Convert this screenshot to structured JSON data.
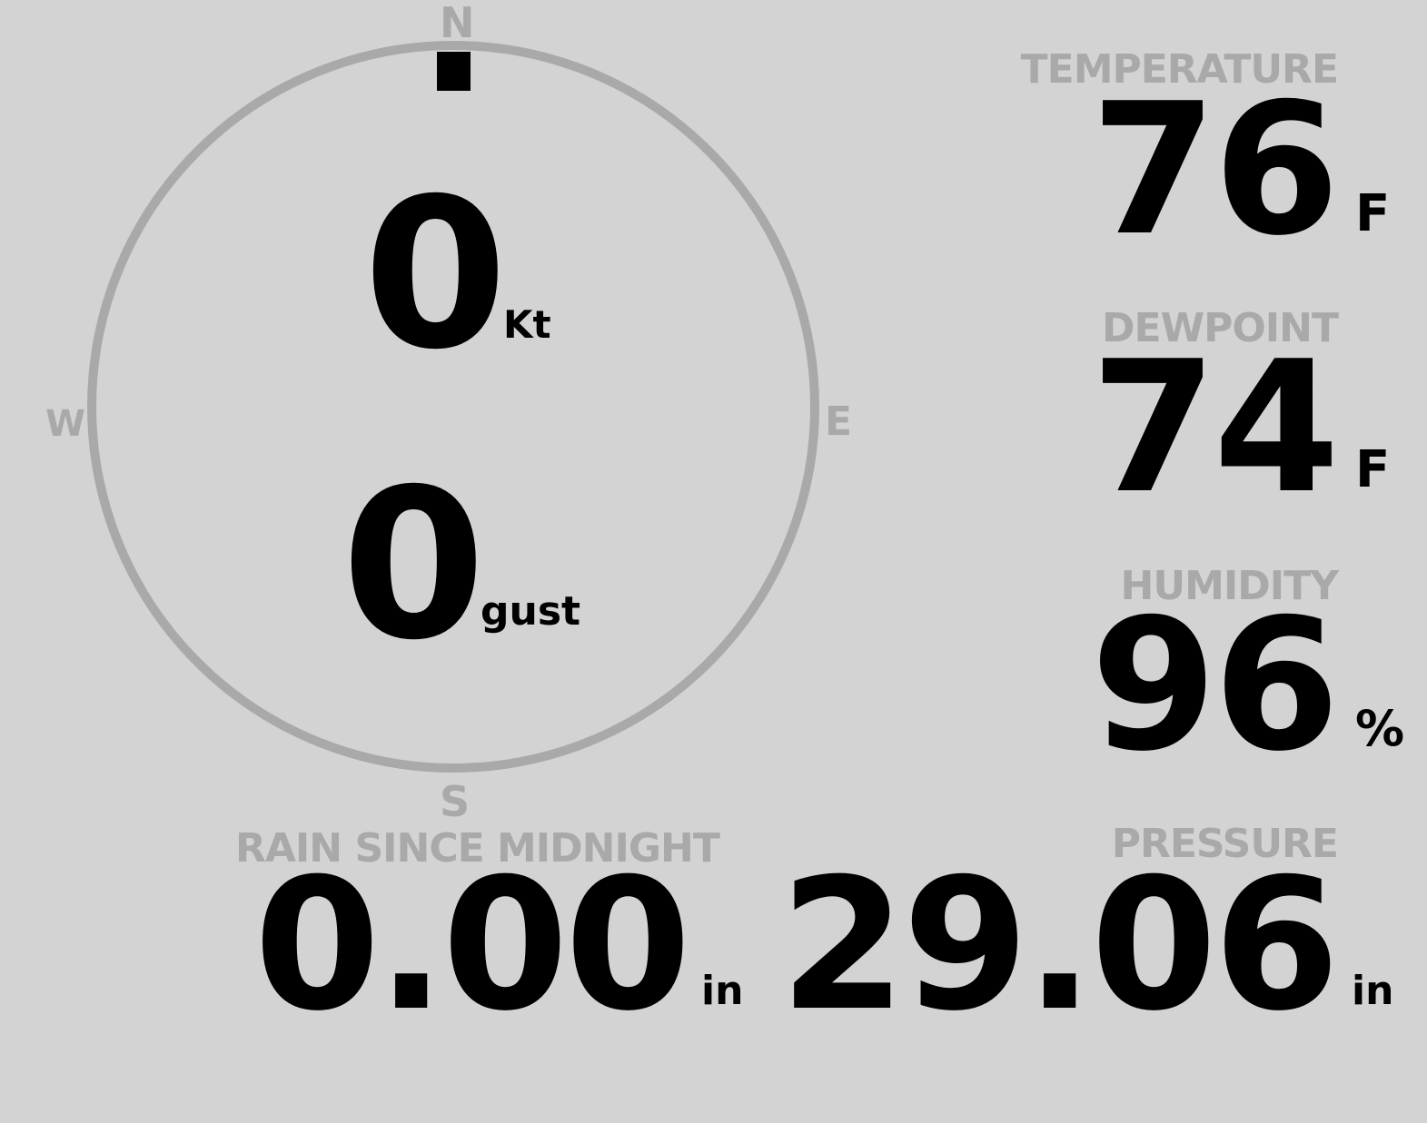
{
  "wind": {
    "compass": {
      "north": "N",
      "south": "S",
      "east": "E",
      "west": "W"
    },
    "direction_deg": 0,
    "speed": "0",
    "speed_unit": "Kt",
    "gust": "0",
    "gust_unit": "gust",
    "colors": {
      "ring": "#a9a9a9",
      "indicator": "#000000"
    }
  },
  "temperature": {
    "label": "TEMPERATURE",
    "value": "76",
    "unit": "F"
  },
  "dewpoint": {
    "label": "DEWPOINT",
    "value": "74",
    "unit": "F"
  },
  "humidity": {
    "label": "HUMIDITY",
    "value": "96",
    "unit": "%"
  },
  "pressure": {
    "label": "PRESSURE",
    "value": "29.06",
    "unit": "in"
  },
  "rain": {
    "label": "RAIN SINCE MIDNIGHT",
    "value": "0.00",
    "unit": "in"
  },
  "colors": {
    "background": "#d3d3d3",
    "label": "#a9a9a9",
    "value": "#000000"
  }
}
